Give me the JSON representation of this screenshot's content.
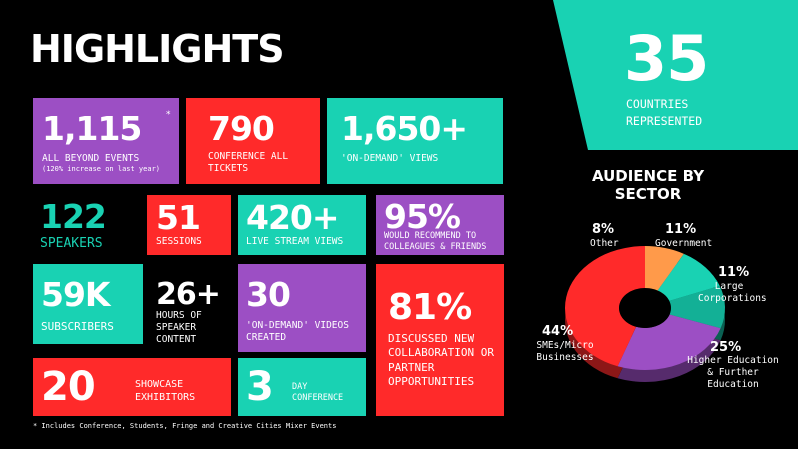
{
  "title": "HIGHLIGHTS",
  "footnote": "* Includes Conference, Students, Fringe and Creative Cities Mixer Events",
  "colors": {
    "purple": "#9c4fc4",
    "red": "#ff2a2a",
    "teal": "#19d2b3",
    "orange": "#ff9a4a",
    "background": "#000000"
  },
  "stats": {
    "events": {
      "value": "1,115",
      "mark": "*",
      "label": "ALL BEYOND EVENTS",
      "sub": "(120% increase on last year)"
    },
    "tickets": {
      "value": "790",
      "label": "CONFERENCE ALL TICKETS"
    },
    "ondemand_views": {
      "value": "1,650+",
      "label": "'ON-DEMAND' VIEWS"
    },
    "speakers": {
      "value": "122",
      "label": "SPEAKERS"
    },
    "sessions": {
      "value": "51",
      "label": "SESSIONS"
    },
    "livestream": {
      "value": "420+",
      "label": "LIVE STREAM VIEWS"
    },
    "recommend": {
      "value": "95%",
      "label": "WOULD RECOMMEND TO COLLEAGUES & FRIENDS"
    },
    "subscribers": {
      "value": "59K",
      "label": "SUBSCRIBERS"
    },
    "hours": {
      "value": "26+",
      "label": "HOURS OF SPEAKER CONTENT"
    },
    "videos": {
      "value": "30",
      "label": "'ON-DEMAND' VIDEOS CREATED"
    },
    "collaboration": {
      "value": "81%",
      "label": "DISCUSSED NEW COLLABORATION OR PARTNER OPPORTUNITIES"
    },
    "exhibitors": {
      "value": "20",
      "label": "SHOWCASE EXHIBITORS"
    },
    "days": {
      "value": "3",
      "label": "DAY CONFERENCE"
    },
    "countries": {
      "value": "35",
      "label": "COUNTRIES REPRESENTED"
    }
  },
  "chart_data": {
    "type": "pie",
    "title": "AUDIENCE BY SECTOR",
    "style": "3d donut",
    "slices": [
      {
        "label": "Other",
        "pct_label": "8%",
        "value": 8,
        "color": "#ff9a4a"
      },
      {
        "label": "Government",
        "pct_label": "11%",
        "value": 11,
        "color": "#19d2b3"
      },
      {
        "label": "Large Corporations",
        "pct_label": "11%",
        "value": 11,
        "color": "#13b096"
      },
      {
        "label": "Higher Education & Further Education",
        "pct_label": "25%",
        "value": 25,
        "color": "#9c4fc4"
      },
      {
        "label": "SMEs/Micro Businesses",
        "pct_label": "44%",
        "value": 44,
        "color": "#ff2a2a"
      }
    ]
  }
}
